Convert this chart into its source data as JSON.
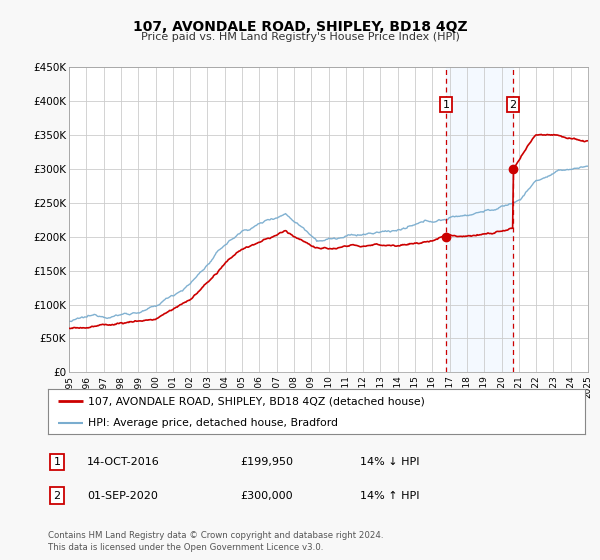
{
  "title": "107, AVONDALE ROAD, SHIPLEY, BD18 4QZ",
  "subtitle": "Price paid vs. HM Land Registry's House Price Index (HPI)",
  "ylim": [
    0,
    450000
  ],
  "xlim": [
    1995,
    2025
  ],
  "yticks": [
    0,
    50000,
    100000,
    150000,
    200000,
    250000,
    300000,
    350000,
    400000,
    450000
  ],
  "ytick_labels": [
    "£0",
    "£50K",
    "£100K",
    "£150K",
    "£200K",
    "£250K",
    "£300K",
    "£350K",
    "£400K",
    "£450K"
  ],
  "red_line_label": "107, AVONDALE ROAD, SHIPLEY, BD18 4QZ (detached house)",
  "blue_line_label": "HPI: Average price, detached house, Bradford",
  "sale1_date": 2016.79,
  "sale1_price": 199950,
  "sale1_label": "1",
  "sale1_text": "14-OCT-2016",
  "sale1_amount": "£199,950",
  "sale1_hpi": "14% ↓ HPI",
  "sale2_date": 2020.67,
  "sale2_price": 300000,
  "sale2_label": "2",
  "sale2_text": "01-SEP-2020",
  "sale2_amount": "£300,000",
  "sale2_hpi": "14% ↑ HPI",
  "background_color": "#f8f8f8",
  "plot_bg_color": "#ffffff",
  "red_color": "#cc0000",
  "blue_color": "#7aadcf",
  "shade_color": "#ddeeff",
  "vline_color": "#cc0000",
  "grid_color": "#cccccc",
  "footer": "Contains HM Land Registry data © Crown copyright and database right 2024.\nThis data is licensed under the Open Government Licence v3.0."
}
